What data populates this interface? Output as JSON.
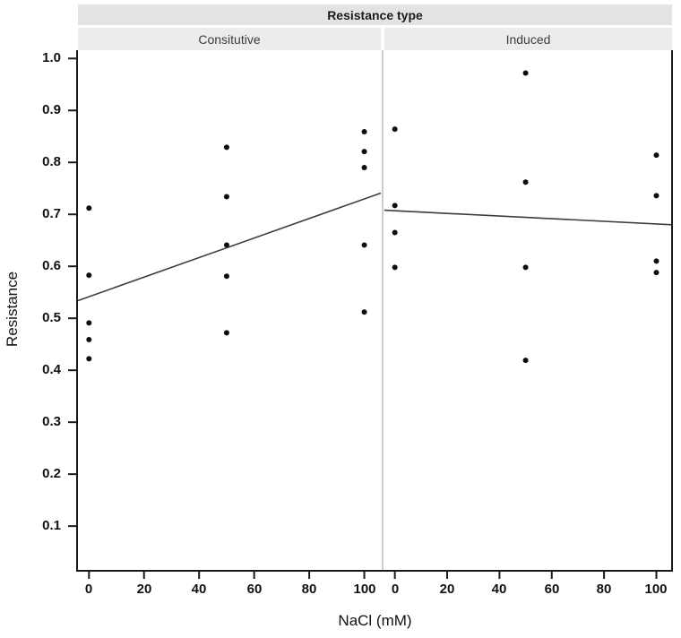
{
  "chart_data": {
    "type": "scatter",
    "title": "Resistance type",
    "xlabel": "NaCl (mM)",
    "ylabel": "Resistance",
    "facets": [
      "Consitutive",
      "Induced"
    ],
    "x_ticks": [
      0,
      20,
      40,
      60,
      80,
      100
    ],
    "y_ticks": [
      0.1,
      0.2,
      0.3,
      0.4,
      0.5,
      0.6,
      0.7,
      0.8,
      0.9,
      1.0
    ],
    "y_tick_labels": [
      "0.1",
      "0.2",
      "0.3",
      "0.4",
      "0.5",
      "0.6",
      "0.7",
      "0.8",
      "0.9",
      "1.0"
    ],
    "xlim": [
      -4,
      106
    ],
    "ylim": [
      0.014,
      1.016
    ],
    "grid": false,
    "legend": "none",
    "series": [
      {
        "facet": "Consitutive",
        "points": [
          {
            "x": 0,
            "y": 0.712
          },
          {
            "x": 0,
            "y": 0.583
          },
          {
            "x": 0,
            "y": 0.491
          },
          {
            "x": 0,
            "y": 0.459
          },
          {
            "x": 0,
            "y": 0.422
          },
          {
            "x": 50,
            "y": 0.829
          },
          {
            "x": 50,
            "y": 0.734
          },
          {
            "x": 50,
            "y": 0.641
          },
          {
            "x": 50,
            "y": 0.581
          },
          {
            "x": 50,
            "y": 0.472
          },
          {
            "x": 100,
            "y": 0.859
          },
          {
            "x": 100,
            "y": 0.821
          },
          {
            "x": 100,
            "y": 0.79
          },
          {
            "x": 100,
            "y": 0.641
          },
          {
            "x": 100,
            "y": 0.512
          }
        ],
        "trend_line": {
          "x": [
            -4,
            106
          ],
          "y": [
            0.534,
            0.741
          ]
        }
      },
      {
        "facet": "Induced",
        "points": [
          {
            "x": 0,
            "y": 0.864
          },
          {
            "x": 0,
            "y": 0.717
          },
          {
            "x": 0,
            "y": 0.665
          },
          {
            "x": 0,
            "y": 0.598
          },
          {
            "x": 50,
            "y": 0.972
          },
          {
            "x": 50,
            "y": 0.762
          },
          {
            "x": 50,
            "y": 0.598
          },
          {
            "x": 50,
            "y": 0.419
          },
          {
            "x": 100,
            "y": 0.814
          },
          {
            "x": 100,
            "y": 0.736
          },
          {
            "x": 100,
            "y": 0.61
          },
          {
            "x": 100,
            "y": 0.588
          }
        ],
        "trend_line": {
          "x": [
            -4,
            106
          ],
          "y": [
            0.708,
            0.68
          ]
        }
      }
    ],
    "colors": {
      "point": "#0d0d0d",
      "trend_line": "#3d3d3d",
      "axis": "#1a1a1a",
      "strip_title_bg": "#e3e3e3",
      "facet_strip_bg": "#ececec",
      "panel_divider": "#cdcdcd",
      "strip_title_text": "#1b1b1b",
      "facet_text": "#3c3c3c",
      "tick_text": "#111111"
    }
  }
}
